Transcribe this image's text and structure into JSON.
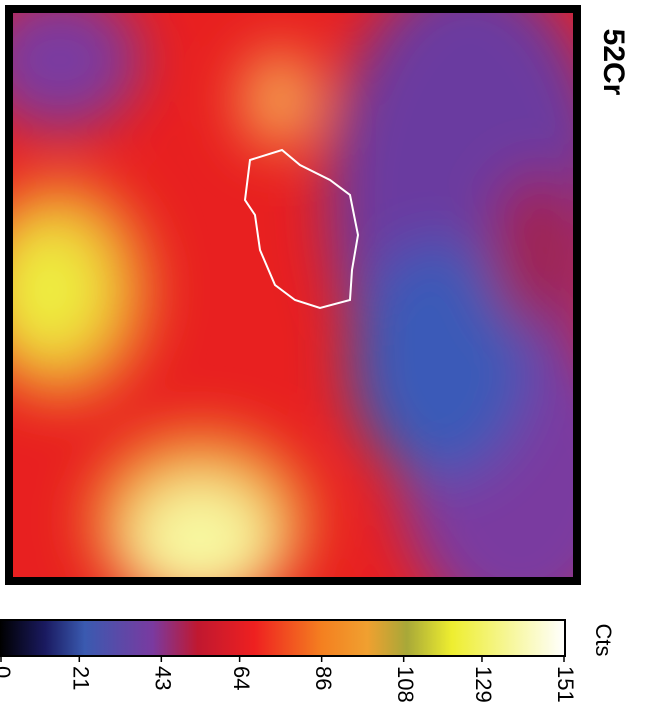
{
  "chart_data": {
    "type": "heatmap",
    "title": "52Cr",
    "colorbar_label": "Cts",
    "zlim": [
      0,
      151
    ],
    "zticks": [
      0,
      21,
      43,
      64,
      86,
      108,
      129,
      151
    ]
  }
}
